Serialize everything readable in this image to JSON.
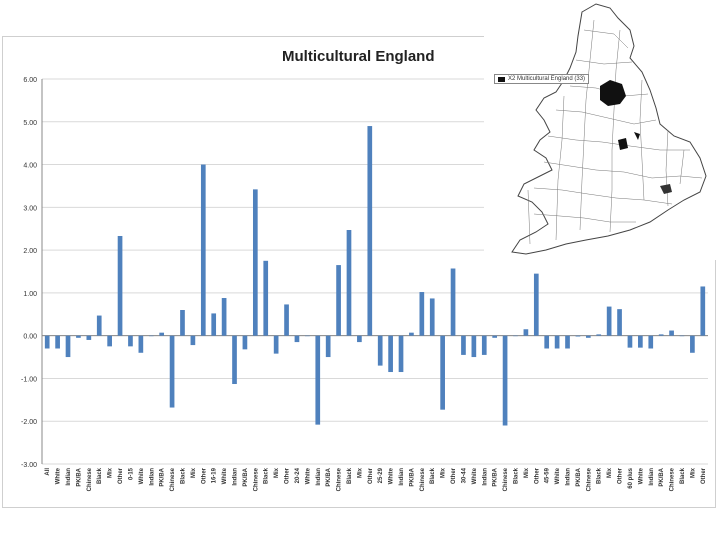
{
  "chart_data": {
    "type": "bar",
    "title": "Multicultural England",
    "xlabel": "",
    "ylabel": "",
    "ylim": [
      -3,
      6
    ],
    "yticks": [
      "6.00",
      "5.00",
      "4.00",
      "3.00",
      "2.00",
      "1.00",
      "0.00",
      "-1.00",
      "-2.00",
      "-3.00"
    ],
    "categories": [
      "All",
      "White",
      "Indian",
      "PK/BA",
      "Chinese",
      "Black",
      "Mix",
      "Other",
      "0-15",
      "White",
      "Indian",
      "PK/BA",
      "Chinese",
      "Black",
      "Mix",
      "Other",
      "16-19",
      "White",
      "Indian",
      "PK/BA",
      "Chinese",
      "Black",
      "Mix",
      "Other",
      "20-24",
      "White",
      "Indian",
      "PK/BA",
      "Chinese",
      "Black",
      "Mix",
      "Other",
      "25-29",
      "White",
      "Indian",
      "PK/BA",
      "Chinese",
      "Black",
      "Mix",
      "Other",
      "30-44",
      "White",
      "Indian",
      "PK/BA",
      "Chinese",
      "Black",
      "Mix",
      "Other",
      "45-59",
      "White",
      "Indian",
      "PK/BA",
      "Chinese",
      "Black",
      "Mix",
      "Other",
      "60 plus",
      "White",
      "Indian",
      "PK/BA",
      "Chinese",
      "Black",
      "Mix",
      "Other"
    ],
    "values": [
      -0.3,
      -0.3,
      -0.5,
      -0.05,
      -0.1,
      0.47,
      -0.25,
      2.33,
      -0.25,
      -0.4,
      0,
      0.07,
      -1.68,
      0.6,
      -0.22,
      4.0,
      0.52,
      0.88,
      -1.13,
      -0.32,
      3.42,
      1.75,
      -0.42,
      0.73,
      -0.15,
      0,
      -2.08,
      -0.5,
      1.65,
      2.47,
      -0.15,
      4.9,
      -0.7,
      -0.85,
      -0.85,
      0.07,
      1.02,
      0.87,
      -1.73,
      1.57,
      -0.45,
      -0.5,
      -0.45,
      -0.05,
      -2.1,
      0,
      0.15,
      1.45,
      -0.3,
      -0.3,
      -0.3,
      -0.02,
      -0.05,
      0.03,
      0.68,
      0.62,
      -0.28,
      -0.28,
      -0.3,
      0.03,
      0.12,
      0,
      -0.4,
      1.15
    ]
  },
  "map": {
    "legend_label": "X2 Multicultural England (33)"
  },
  "colors": {
    "bar": "#4f81bd",
    "grid": "#d9d9d9",
    "map_region": "#111111"
  }
}
